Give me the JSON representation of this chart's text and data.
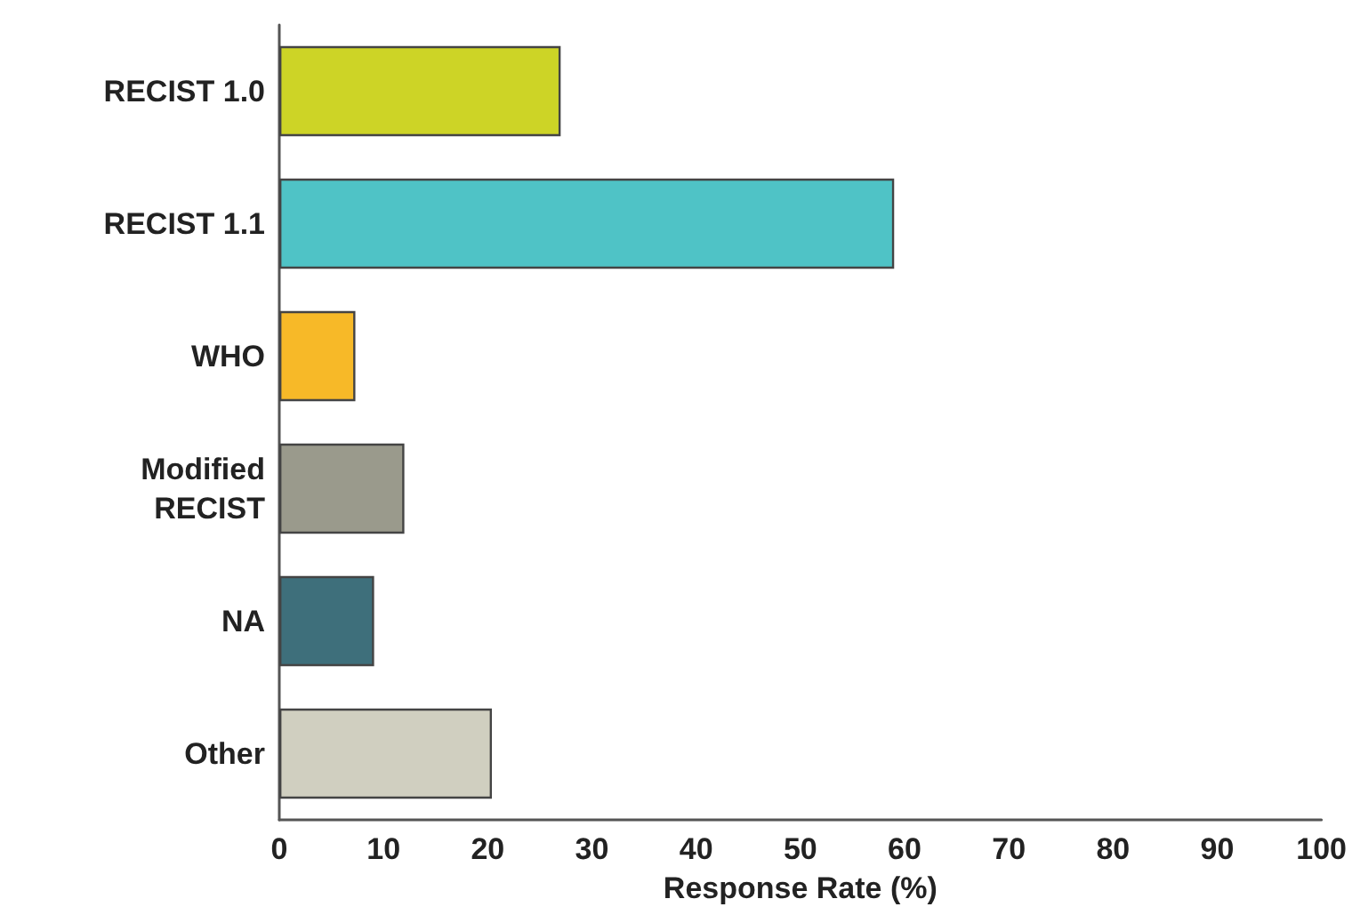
{
  "chart_data": {
    "type": "bar",
    "orientation": "horizontal",
    "xlabel": "Response Rate (%)",
    "categories": [
      "RECIST 1.0",
      "RECIST 1.1",
      "WHO",
      "Modified\nRECIST",
      "NA",
      "Other"
    ],
    "values": [
      27,
      59,
      7.3,
      12,
      9.1,
      20.4
    ],
    "colors": [
      "#cdd426",
      "#4fc3c6",
      "#f7b928",
      "#9a9a8c",
      "#3e6f7b",
      "#d0cfc0"
    ],
    "xlim": [
      0,
      100
    ],
    "xticks": [
      0,
      10,
      20,
      30,
      40,
      50,
      60,
      70,
      80,
      90,
      100
    ],
    "grid": false
  }
}
